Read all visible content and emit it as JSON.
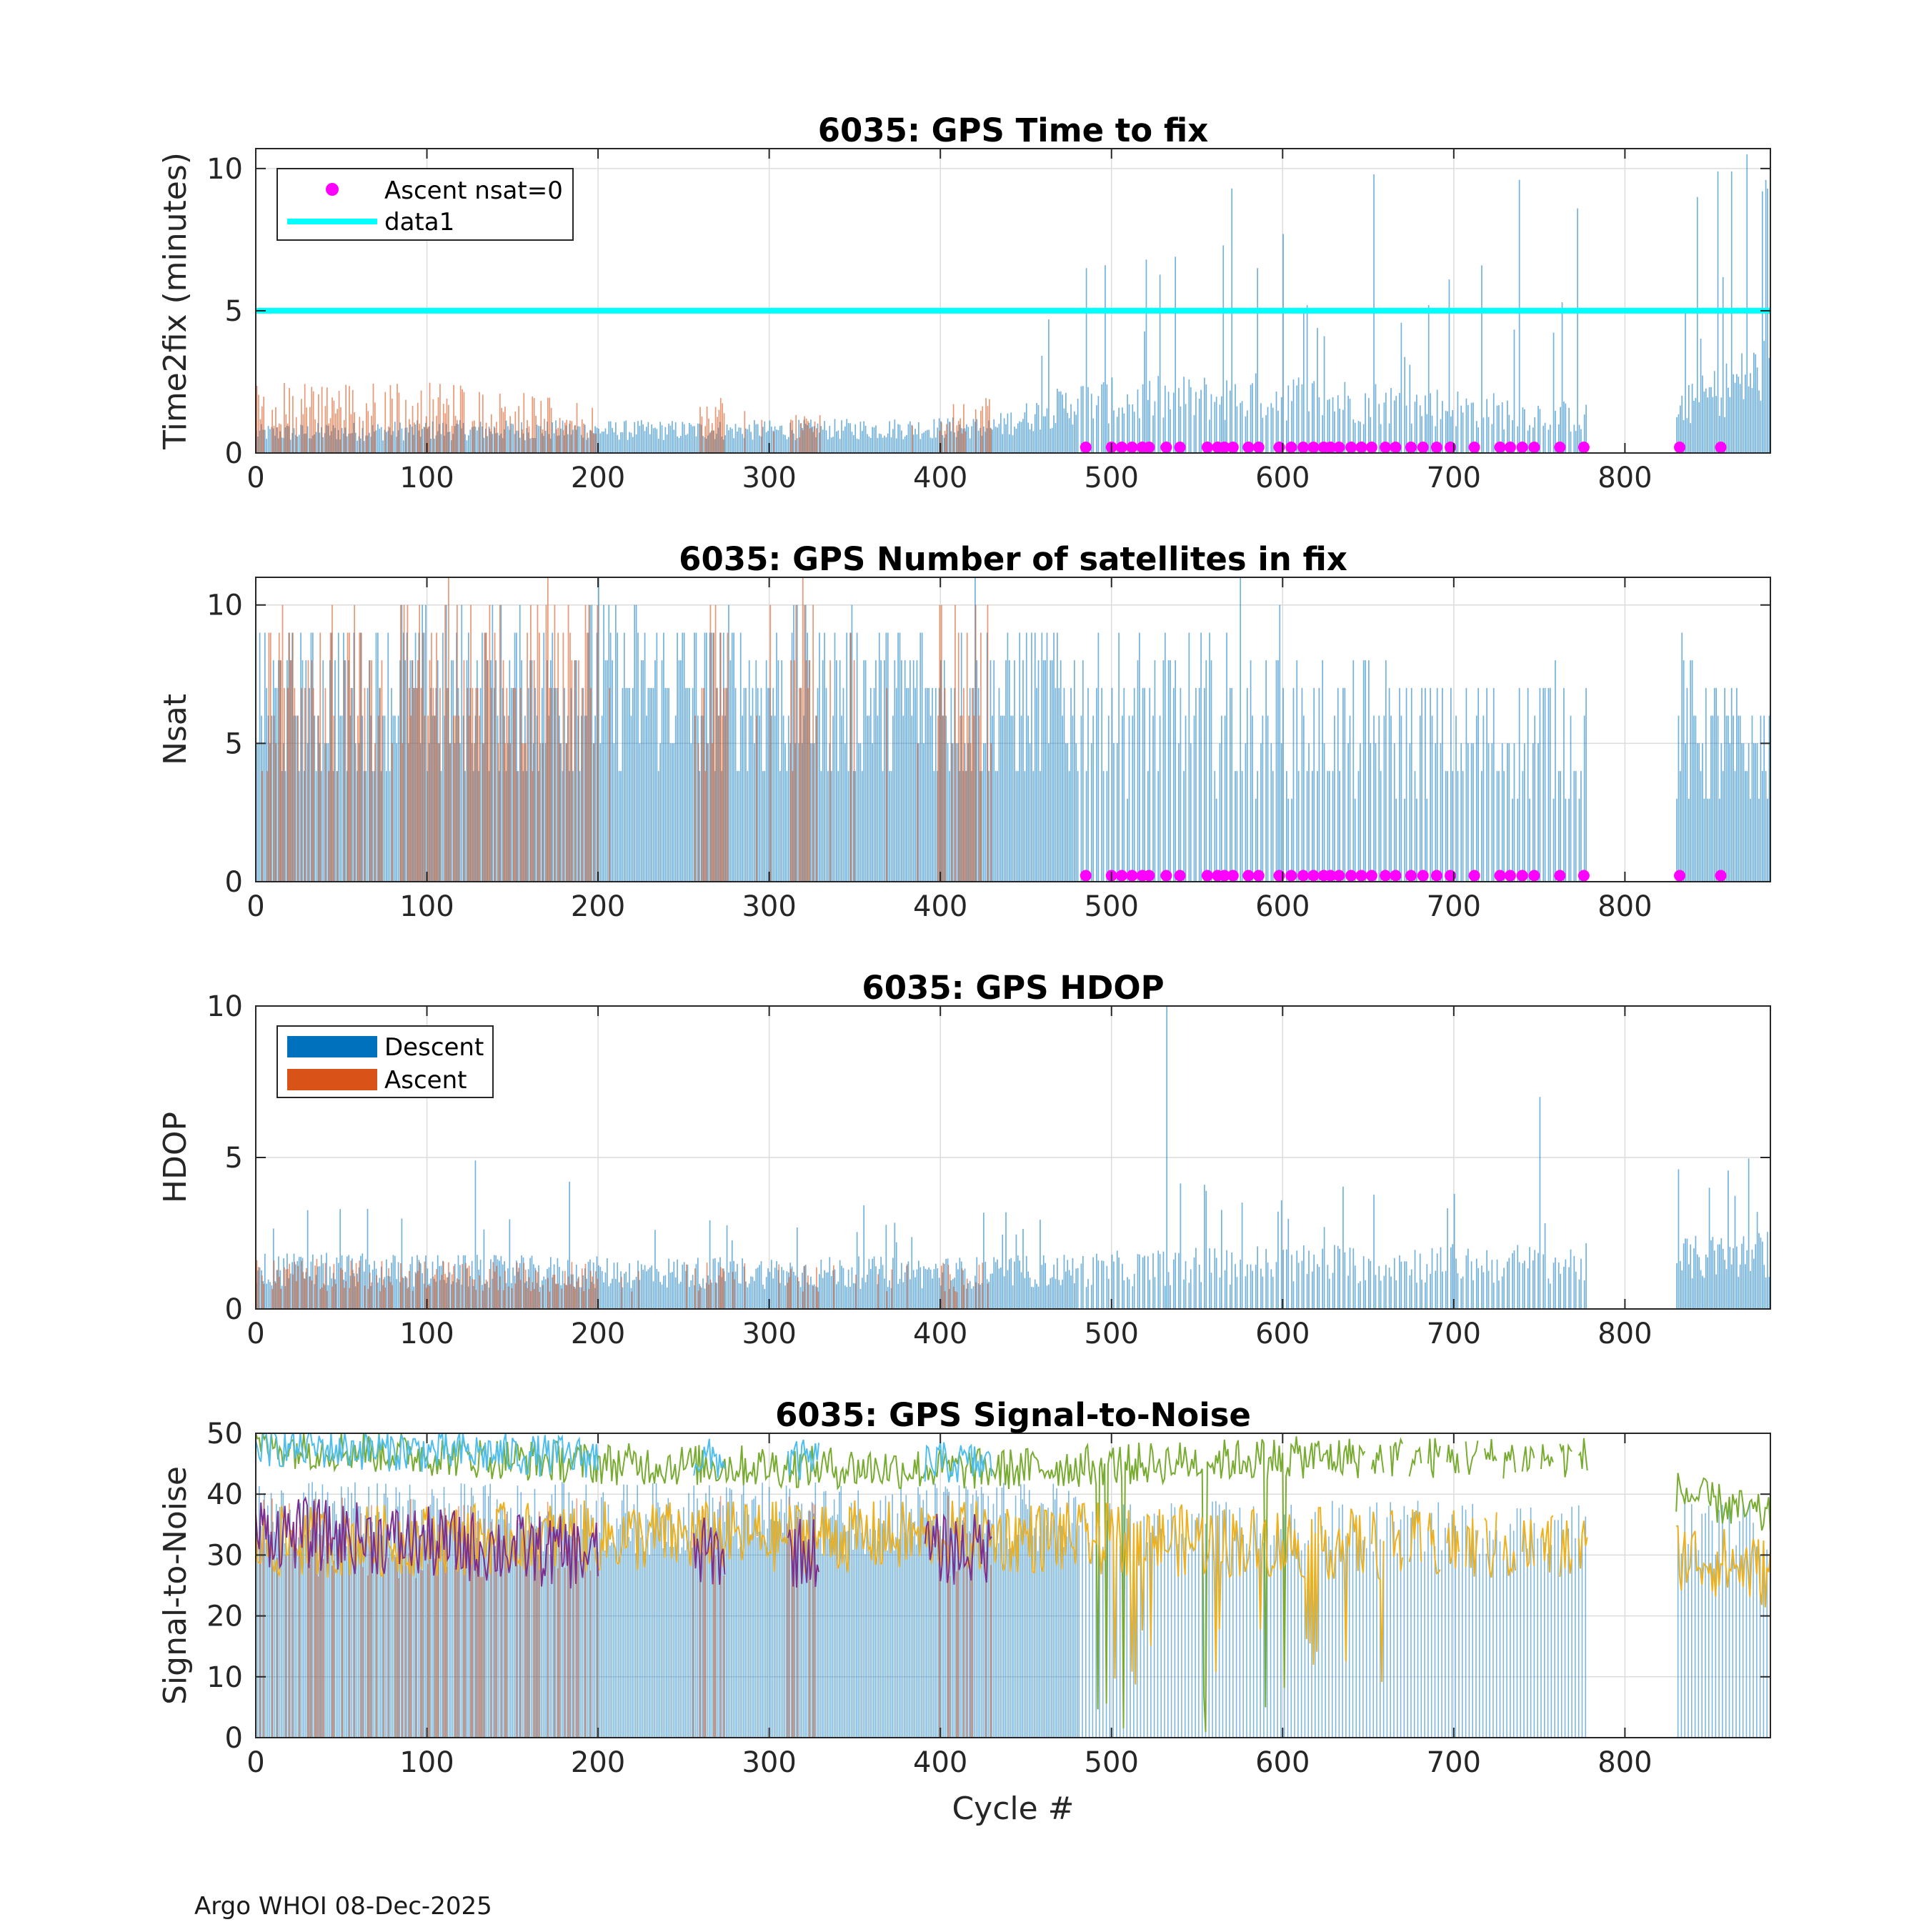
{
  "footer": "Argo WHOI 08-Dec-2025",
  "colors": {
    "descent": "#0072BD",
    "ascent": "#D95319",
    "marker": "#FF00FF",
    "threshold": "#00FFFF",
    "snr_green": "#77AC30",
    "snr_cyan": "#4DBEEE",
    "snr_yellow": "#EDB120",
    "snr_purple": "#7E2F8E",
    "grid": "#dcdcdc",
    "axis": "#262626"
  },
  "chart_data": [
    {
      "type": "bar",
      "title": "6035: GPS Time to fix",
      "xlabel": "",
      "ylabel": "Time2fix (minutes)",
      "xlim": [
        0,
        885
      ],
      "ylim": [
        0,
        10.7
      ],
      "xticks": [
        0,
        100,
        200,
        300,
        400,
        500,
        600,
        700,
        800
      ],
      "yticks": [
        0,
        5,
        10
      ],
      "grid": true,
      "legend": {
        "location": "top-left",
        "entries": [
          {
            "label": "Ascent nsat=0",
            "kind": "marker"
          },
          {
            "label": "data1",
            "kind": "line"
          }
        ]
      },
      "threshold_value": 5,
      "ascent_nsat0_cycles": [
        485,
        500,
        506,
        512,
        518,
        522,
        532,
        540,
        556,
        562,
        566,
        571,
        580,
        586,
        598,
        605,
        612,
        618,
        624,
        628,
        633,
        640,
        646,
        652,
        660,
        666,
        675,
        682,
        690,
        698,
        712,
        727,
        733,
        740,
        747,
        762,
        776,
        832,
        856
      ],
      "series_note": "descent and ascent bar values per cycle 0-885 (approximated from figure)",
      "profile": {
        "descent_base": [
          [
            0,
            0.7
          ],
          [
            100,
            0.8
          ],
          [
            200,
            0.8
          ],
          [
            300,
            0.8
          ],
          [
            430,
            0.9
          ],
          [
            480,
            1.8
          ],
          [
            600,
            2.0
          ],
          [
            700,
            1.6
          ],
          [
            780,
            1.2
          ],
          [
            830,
            1.5
          ],
          [
            885,
            3.0
          ]
        ],
        "descent_peaks": [
          [
            485,
            6.5
          ],
          [
            496,
            6.6
          ],
          [
            520,
            6.8
          ],
          [
            537,
            6.9
          ],
          [
            565,
            7.3
          ],
          [
            570,
            9.3
          ],
          [
            585,
            6.5
          ],
          [
            600,
            7.7
          ],
          [
            620,
            4.4
          ],
          [
            653,
            9.8
          ],
          [
            685,
            5.2
          ],
          [
            697,
            6.1
          ],
          [
            716,
            6.6
          ],
          [
            738,
            9.6
          ],
          [
            763,
            5.3
          ],
          [
            772,
            8.6
          ],
          [
            842,
            9.0
          ],
          [
            854,
            9.9
          ],
          [
            862,
            9.9
          ],
          [
            871,
            10.5
          ],
          [
            880,
            9.2
          ]
        ],
        "ascent_base": [
          [
            0,
            1.8
          ],
          [
            120,
            1.8
          ],
          [
            200,
            1.2
          ],
          [
            275,
            1.5
          ],
          [
            300,
            0.9
          ],
          [
            430,
            1.4
          ]
        ]
      }
    },
    {
      "type": "bar",
      "title": "6035: GPS Number of satellites in fix",
      "xlabel": "",
      "ylabel": "Nsat",
      "xlim": [
        0,
        885
      ],
      "ylim": [
        0,
        11
      ],
      "xticks": [
        0,
        100,
        200,
        300,
        400,
        500,
        600,
        700,
        800
      ],
      "yticks": [
        0,
        5,
        10
      ],
      "grid": true,
      "ascent_nsat0_cycles": [
        485,
        500,
        506,
        512,
        518,
        522,
        532,
        540,
        556,
        562,
        566,
        571,
        580,
        586,
        598,
        605,
        612,
        618,
        624,
        628,
        633,
        640,
        646,
        652,
        660,
        666,
        675,
        682,
        690,
        698,
        712,
        727,
        733,
        740,
        747,
        762,
        776,
        832,
        856
      ],
      "profile": {
        "descent_base": [
          [
            0,
            6.5
          ],
          [
            200,
            7.0
          ],
          [
            430,
            6.5
          ],
          [
            480,
            6.5
          ],
          [
            600,
            5.8
          ],
          [
            700,
            5.2
          ],
          [
            780,
            5.5
          ],
          [
            830,
            5.5
          ],
          [
            885,
            4.5
          ]
        ],
        "descent_peaks": [
          [
            85,
            10
          ],
          [
            200,
            10.8
          ],
          [
            420,
            10.8
          ],
          [
            575,
            10.8
          ],
          [
            598,
            9.7
          ],
          [
            833,
            9.4
          ]
        ],
        "ascent_base": [
          [
            0,
            6.5
          ],
          [
            120,
            7.2
          ],
          [
            200,
            7.0
          ],
          [
            430,
            7.5
          ]
        ]
      }
    },
    {
      "type": "bar",
      "title": "6035: GPS HDOP",
      "xlabel": "",
      "ylabel": "HDOP",
      "xlim": [
        0,
        885
      ],
      "ylim": [
        0,
        10
      ],
      "xticks": [
        0,
        100,
        200,
        300,
        400,
        500,
        600,
        700,
        800
      ],
      "yticks": [
        0,
        5,
        10
      ],
      "grid": true,
      "legend": {
        "location": "top-left",
        "entries": [
          {
            "label": "Descent",
            "kind": "patch"
          },
          {
            "label": "Ascent",
            "kind": "patch"
          }
        ]
      },
      "profile": {
        "descent_base": [
          [
            0,
            1.3
          ],
          [
            200,
            1.2
          ],
          [
            430,
            1.2
          ],
          [
            600,
            1.5
          ],
          [
            780,
            1.5
          ],
          [
            885,
            1.8
          ]
        ],
        "descent_peaks": [
          [
            128,
            4.9
          ],
          [
            183,
            4.2
          ],
          [
            532,
            10.0
          ],
          [
            750,
            7.0
          ],
          [
            555,
            3.9
          ],
          [
            700,
            3.8
          ],
          [
            885,
            3.8
          ]
        ],
        "ascent_base": [
          [
            0,
            1.2
          ],
          [
            200,
            1.1
          ],
          [
            430,
            1.1
          ]
        ]
      }
    },
    {
      "type": "line",
      "title": "6035: GPS Signal-to-Noise",
      "xlabel": "Cycle #",
      "ylabel": "Signal-to-Noise",
      "xlim": [
        0,
        885
      ],
      "ylim": [
        0,
        50
      ],
      "xticks": [
        0,
        100,
        200,
        300,
        400,
        500,
        600,
        700,
        800
      ],
      "yticks": [
        0,
        10,
        20,
        30,
        40,
        50
      ],
      "grid": true,
      "series": [
        {
          "name": "descent_max",
          "color_key": "snr_green",
          "profile": [
            [
              0,
              48
            ],
            [
              200,
              45
            ],
            [
              430,
              44
            ],
            [
              600,
              46
            ],
            [
              780,
              46
            ],
            [
              835,
              40
            ],
            [
              885,
              36
            ]
          ]
        },
        {
          "name": "ascent_max",
          "color_key": "snr_cyan",
          "profile": [
            [
              0,
              48
            ],
            [
              200,
              46
            ],
            [
              430,
              45
            ]
          ]
        },
        {
          "name": "descent_mean",
          "color_key": "snr_yellow",
          "profile": [
            [
              0,
              32
            ],
            [
              200,
              33
            ],
            [
              430,
              33
            ],
            [
              600,
              32
            ],
            [
              780,
              31
            ],
            [
              835,
              30
            ],
            [
              885,
              27
            ]
          ]
        },
        {
          "name": "ascent_mean",
          "color_key": "snr_purple",
          "profile": [
            [
              0,
              34
            ],
            [
              200,
              30
            ],
            [
              430,
              31
            ]
          ]
        }
      ]
    }
  ]
}
